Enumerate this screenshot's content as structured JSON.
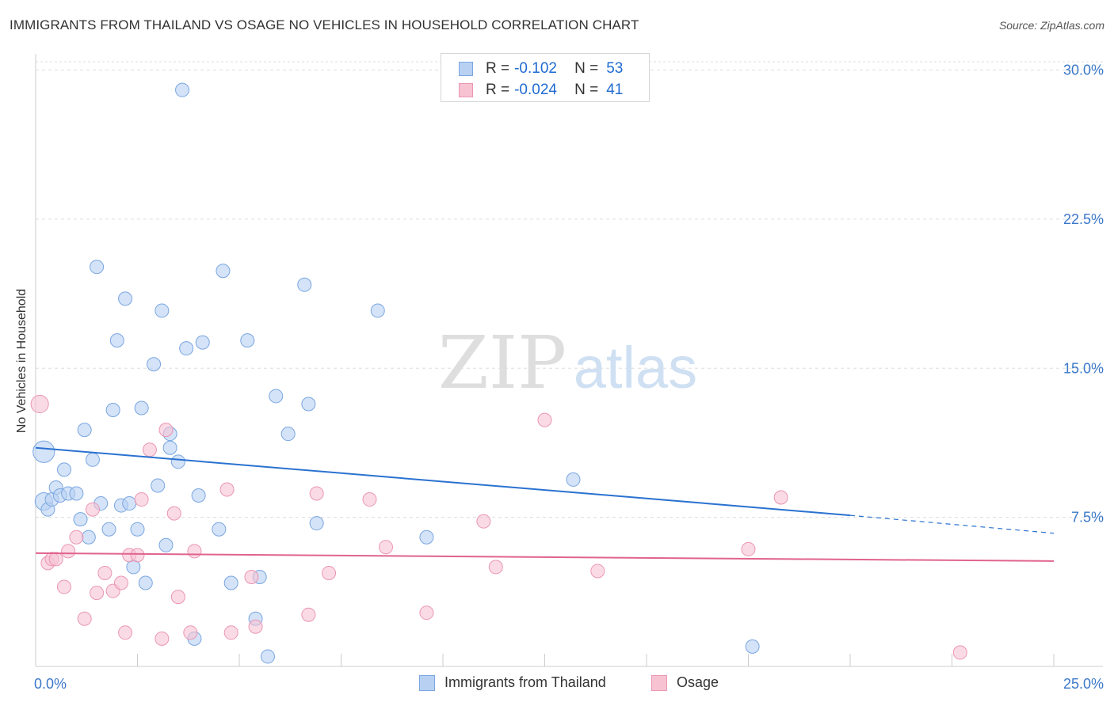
{
  "title": "IMMIGRANTS FROM THAILAND VS OSAGE NO VEHICLES IN HOUSEHOLD CORRELATION CHART",
  "source": "Source: ZipAtlas.com",
  "watermark": {
    "zip": "ZIP",
    "atlas": "atlas"
  },
  "legend_top": [
    {
      "r_label": "R =",
      "r_value": "-0.102",
      "n_label": "N =",
      "n_value": "53"
    },
    {
      "r_label": "R =",
      "r_value": "-0.024",
      "n_label": "N =",
      "n_value": "41"
    }
  ],
  "colors": {
    "blue_fill": "#b8d1f3",
    "blue_stroke": "#7aa6e0",
    "blue_line": "#2a72d0",
    "pink_fill": "#f7c3d3",
    "pink_stroke": "#eb96b2",
    "pink_line": "#e0648c",
    "tick_label": "#3a78c9",
    "grid": "#dddddd"
  },
  "chart_data": {
    "type": "scatter",
    "title": "IMMIGRANTS FROM THAILAND VS OSAGE NO VEHICLES IN HOUSEHOLD CORRELATION CHART",
    "xlabel": "",
    "ylabel": "No Vehicles in Household",
    "xlim": [
      0,
      25
    ],
    "ylim": [
      0,
      30.5
    ],
    "x_tick_labels": [
      "0.0%",
      "25.0%"
    ],
    "y_ticks": [
      7.5,
      15.0,
      22.5,
      30.0
    ],
    "y_tick_labels": [
      "7.5%",
      "15.0%",
      "22.5%",
      "30.0%"
    ],
    "grid": "horizontal dashed",
    "legend_position": "top-center",
    "series": [
      {
        "name": "Immigrants from Thailand",
        "points": [
          [
            0.2,
            10.8,
            1.6
          ],
          [
            0.2,
            8.3,
            1.3
          ],
          [
            0.3,
            7.9,
            1
          ],
          [
            0.4,
            8.4,
            1
          ],
          [
            0.5,
            9.0,
            1
          ],
          [
            0.6,
            8.6,
            1
          ],
          [
            0.7,
            9.9,
            1
          ],
          [
            0.8,
            8.7,
            1
          ],
          [
            1.0,
            8.7,
            1
          ],
          [
            1.1,
            7.4,
            1
          ],
          [
            1.2,
            11.9,
            1
          ],
          [
            1.3,
            6.5,
            1
          ],
          [
            1.4,
            10.4,
            1
          ],
          [
            1.5,
            20.1,
            1
          ],
          [
            1.6,
            8.2,
            1
          ],
          [
            1.8,
            6.9,
            1
          ],
          [
            1.9,
            12.9,
            1
          ],
          [
            2.0,
            16.4,
            1
          ],
          [
            2.1,
            8.1,
            1
          ],
          [
            2.2,
            18.5,
            1
          ],
          [
            2.3,
            8.2,
            1
          ],
          [
            2.4,
            5.0,
            1
          ],
          [
            2.5,
            6.9,
            1
          ],
          [
            2.6,
            13.0,
            1
          ],
          [
            2.7,
            4.2,
            1
          ],
          [
            2.9,
            15.2,
            1
          ],
          [
            3.0,
            9.1,
            1
          ],
          [
            3.1,
            17.9,
            1
          ],
          [
            3.2,
            6.1,
            1
          ],
          [
            3.3,
            11.7,
            1
          ],
          [
            3.3,
            11.0,
            1
          ],
          [
            3.5,
            10.3,
            1
          ],
          [
            3.6,
            29.0,
            1
          ],
          [
            3.7,
            16.0,
            1
          ],
          [
            3.9,
            1.4,
            1
          ],
          [
            4.0,
            8.6,
            1
          ],
          [
            4.1,
            16.3,
            1
          ],
          [
            4.5,
            6.9,
            1
          ],
          [
            4.6,
            19.9,
            1
          ],
          [
            4.8,
            4.2,
            1
          ],
          [
            5.2,
            16.4,
            1
          ],
          [
            5.4,
            2.4,
            1
          ],
          [
            5.5,
            4.5,
            1
          ],
          [
            5.7,
            0.5,
            1
          ],
          [
            5.9,
            13.6,
            1
          ],
          [
            6.2,
            11.7,
            1
          ],
          [
            6.6,
            19.2,
            1
          ],
          [
            6.7,
            13.2,
            1
          ],
          [
            6.9,
            7.2,
            1
          ],
          [
            8.4,
            17.9,
            1
          ],
          [
            9.6,
            6.5,
            1
          ],
          [
            13.2,
            9.4,
            1
          ],
          [
            17.6,
            1.0,
            1
          ]
        ]
      },
      {
        "name": "Osage",
        "points": [
          [
            0.1,
            13.2,
            1.3
          ],
          [
            0.3,
            5.2,
            1
          ],
          [
            0.4,
            5.4,
            1
          ],
          [
            0.5,
            5.4,
            1
          ],
          [
            0.7,
            4.0,
            1
          ],
          [
            0.8,
            5.8,
            1
          ],
          [
            1.0,
            6.5,
            1
          ],
          [
            1.2,
            2.4,
            1
          ],
          [
            1.4,
            7.9,
            1
          ],
          [
            1.5,
            3.7,
            1
          ],
          [
            1.7,
            4.7,
            1
          ],
          [
            1.9,
            3.8,
            1
          ],
          [
            2.1,
            4.2,
            1
          ],
          [
            2.2,
            1.7,
            1
          ],
          [
            2.3,
            5.6,
            1
          ],
          [
            2.5,
            5.6,
            1
          ],
          [
            2.6,
            8.4,
            1
          ],
          [
            2.8,
            10.9,
            1
          ],
          [
            3.1,
            1.4,
            1
          ],
          [
            3.2,
            11.9,
            1
          ],
          [
            3.4,
            7.7,
            1
          ],
          [
            3.5,
            3.5,
            1
          ],
          [
            3.8,
            1.7,
            1
          ],
          [
            3.9,
            5.8,
            1
          ],
          [
            4.7,
            8.9,
            1
          ],
          [
            4.8,
            1.7,
            1
          ],
          [
            5.3,
            4.5,
            1
          ],
          [
            5.4,
            2.0,
            1
          ],
          [
            6.7,
            2.6,
            1
          ],
          [
            6.9,
            8.7,
            1
          ],
          [
            7.2,
            4.7,
            1
          ],
          [
            8.2,
            8.4,
            1
          ],
          [
            8.6,
            6.0,
            1
          ],
          [
            9.6,
            2.7,
            1
          ],
          [
            11.0,
            7.3,
            1
          ],
          [
            11.3,
            5.0,
            1
          ],
          [
            12.5,
            12.4,
            1
          ],
          [
            13.8,
            4.8,
            1
          ],
          [
            17.5,
            5.9,
            1
          ],
          [
            18.3,
            8.5,
            1
          ],
          [
            22.7,
            0.7,
            1
          ]
        ]
      }
    ],
    "trend_lines": [
      {
        "series": "Immigrants from Thailand",
        "x_start": 0,
        "y_start": 11.0,
        "x_solid_end": 20.0,
        "y_solid_end": 7.6,
        "x_end": 25,
        "y_end": 6.7
      },
      {
        "series": "Osage",
        "x_start": 0,
        "y_start": 5.7,
        "x_end": 25,
        "y_end": 5.3
      }
    ]
  },
  "legend_bottom": [
    {
      "label": "Immigrants from Thailand"
    },
    {
      "label": "Osage"
    }
  ]
}
